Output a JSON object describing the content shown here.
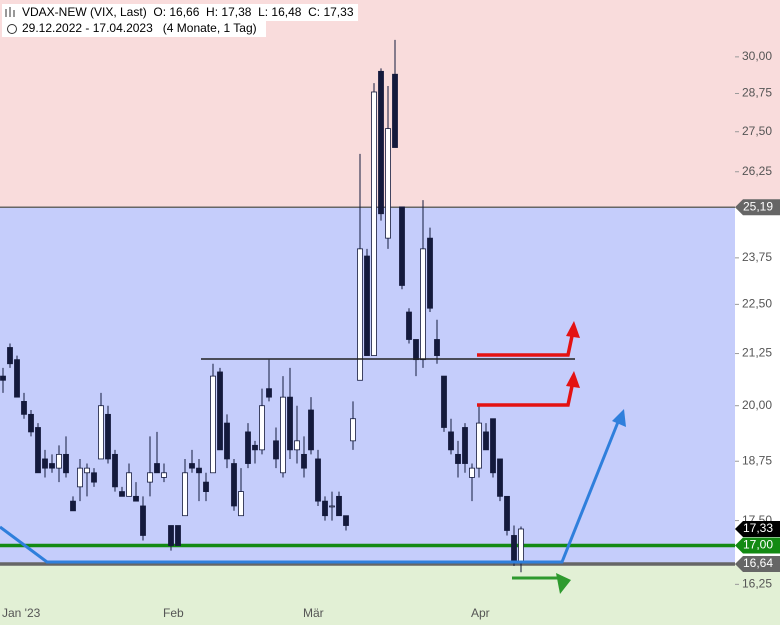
{
  "header": {
    "line1": "VDAX-NEW (VIX, Last)  O: 16,66  H: 17,38  L: 16,48  C: 17,33",
    "line2": "29.12.2022 - 17.04.2023   (4 Monate, 1 Tag)"
  },
  "chart_data": {
    "type": "candlestick",
    "log_scale": true,
    "grid": false,
    "up_color": "#ffffff",
    "down_color": "#141a3c",
    "ylim": [
      15.5,
      32.05
    ],
    "yticks": [
      {
        "value": 16.25,
        "label": "16,25"
      },
      {
        "value": 17.5,
        "label": "17,50"
      },
      {
        "value": 18.75,
        "label": "18,75"
      },
      {
        "value": 20,
        "label": "20,00"
      },
      {
        "value": 21.25,
        "label": "21,25"
      },
      {
        "value": 22.5,
        "label": "22,50"
      },
      {
        "value": 23.75,
        "label": "23,75"
      },
      {
        "value": 26.25,
        "label": "26,25"
      },
      {
        "value": 27.5,
        "label": "27,50"
      },
      {
        "value": 28.75,
        "label": "28,75"
      },
      {
        "value": 30,
        "label": "30,00"
      }
    ],
    "levels": [
      {
        "value": 25.19,
        "label": "25,19",
        "color": "#666666"
      },
      {
        "value": 17.33,
        "label": "17,33",
        "color": "#000000"
      },
      {
        "value": 17,
        "label": "17,00",
        "color": "#138a13"
      },
      {
        "value": 16.64,
        "label": "16,64",
        "color": "#666666"
      }
    ],
    "categories": [
      "Jan '23",
      null,
      null,
      null,
      null,
      null,
      null,
      null,
      null,
      null,
      null,
      null,
      null,
      null,
      null,
      null,
      null,
      null,
      null,
      null,
      null,
      null,
      null,
      "Feb",
      null,
      null,
      null,
      null,
      null,
      null,
      null,
      null,
      null,
      null,
      null,
      null,
      null,
      null,
      null,
      null,
      null,
      null,
      null,
      "Mär",
      null,
      null,
      null,
      null,
      null,
      null,
      null,
      null,
      null,
      null,
      null,
      null,
      null,
      null,
      null,
      null,
      null,
      null,
      null,
      null,
      null,
      null,
      null,
      "Apr",
      null,
      null,
      null,
      null,
      null,
      null,
      null
    ],
    "open": [
      20.7,
      21.4,
      21.1,
      20.1,
      19.8,
      19.5,
      18.8,
      18.7,
      18.6,
      18.9,
      17.9,
      18.2,
      18.5,
      18.5,
      18.8,
      19.8,
      18.9,
      18.1,
      18.0,
      18.0,
      17.8,
      18.3,
      18.7,
      18.4,
      17.4,
      17.4,
      17.6,
      18.7,
      18.6,
      18.3,
      18.5,
      20.8,
      19.6,
      18.7,
      17.6,
      19.4,
      19.1,
      19.0,
      20.4,
      19.2,
      18.5,
      20.2,
      19.0,
      18.9,
      19.9,
      18.8,
      17.9,
      17.8,
      18.0,
      17.6,
      19.2,
      20.6,
      23.8,
      21.2,
      29.5,
      24.3,
      29.4,
      25.2,
      22.3,
      21.6,
      21.1,
      24.3,
      21.6,
      20.7,
      19.4,
      18.9,
      19.5,
      18.4,
      18.6,
      19.4,
      19.7,
      18.8,
      18.0,
      17.2,
      16.66
    ],
    "high": [
      20.9,
      21.5,
      21.2,
      20.3,
      19.9,
      19.6,
      19.0,
      18.9,
      19.1,
      19.3,
      18.0,
      18.8,
      18.7,
      18.6,
      20.3,
      20.0,
      19.0,
      18.2,
      18.7,
      18.3,
      18.0,
      19.3,
      19.4,
      18.7,
      17.4,
      17.4,
      18.8,
      19.0,
      18.8,
      18.5,
      21.0,
      20.9,
      19.8,
      18.8,
      18.6,
      19.6,
      19.2,
      20.4,
      21.1,
      19.5,
      20.7,
      20.9,
      20.0,
      19.3,
      20.2,
      19.0,
      18.0,
      18.1,
      18.1,
      17.6,
      20.1,
      26.8,
      24.0,
      29.1,
      29.6,
      29.0,
      30.6,
      25.2,
      22.4,
      21.6,
      25.4,
      24.6,
      22.1,
      20.7,
      19.7,
      19.2,
      19.6,
      18.7,
      20.0,
      19.6,
      19.7,
      18.8,
      18.0,
      17.4,
      17.38
    ],
    "low": [
      20.3,
      20.9,
      20.2,
      19.7,
      19.3,
      18.5,
      18.4,
      18.5,
      18.3,
      18.4,
      17.7,
      17.9,
      18.0,
      18.2,
      18.8,
      18.7,
      18.1,
      18.0,
      18.0,
      17.9,
      17.1,
      18.0,
      18.5,
      18.3,
      16.9,
      17.0,
      17.6,
      18.5,
      17.9,
      17.9,
      18.5,
      19.0,
      18.6,
      17.7,
      17.6,
      18.6,
      18.7,
      18.9,
      20.1,
      18.6,
      18.4,
      18.8,
      18.7,
      18.4,
      18.9,
      17.8,
      17.5,
      17.5,
      17.6,
      17.3,
      19.0,
      20.6,
      21.2,
      21.2,
      24.8,
      24.0,
      27.0,
      22.9,
      21.5,
      20.7,
      20.9,
      22.3,
      21.0,
      19.4,
      18.9,
      18.4,
      18.5,
      17.9,
      18.4,
      19.0,
      18.4,
      17.9,
      17.2,
      16.6,
      16.48
    ],
    "close": [
      20.6,
      21.0,
      20.2,
      19.8,
      19.4,
      18.5,
      18.6,
      18.6,
      18.9,
      18.5,
      17.7,
      18.6,
      18.6,
      18.3,
      20.0,
      18.8,
      18.2,
      18.0,
      18.5,
      17.9,
      17.2,
      18.5,
      18.5,
      18.5,
      17.0,
      17.0,
      18.5,
      18.6,
      18.5,
      18.1,
      20.7,
      19.0,
      18.8,
      17.8,
      18.1,
      18.7,
      19.0,
      20.0,
      20.2,
      18.8,
      20.2,
      19.0,
      19.2,
      18.6,
      19.0,
      17.9,
      17.6,
      17.8,
      17.6,
      17.4,
      19.7,
      24.0,
      21.2,
      28.8,
      25.0,
      27.6,
      27.0,
      23.0,
      21.6,
      21.1,
      24.0,
      22.4,
      21.2,
      19.5,
      19.0,
      18.7,
      18.7,
      18.6,
      19.6,
      19.0,
      18.5,
      18.0,
      17.3,
      16.7,
      17.33
    ]
  }
}
